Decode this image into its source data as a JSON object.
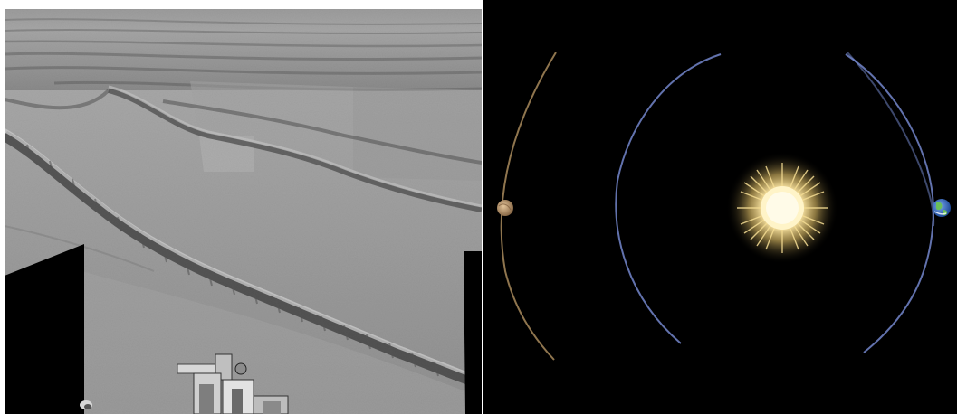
{
  "image": {
    "left_panel": {
      "description_name": "mars-sand-ripples-mosaic",
      "features": [
        "sand-ripples",
        "rover-arm-hardware",
        "mosaic-black-gap"
      ],
      "palette": {
        "sand_light": "#b5b5b5",
        "sand_mid": "#8e8e8e",
        "sand_dark": "#5f5f5f",
        "shadow": "#3c3c3c",
        "gap": "#000000"
      }
    },
    "right_panel": {
      "description_name": "mars-solar-conjunction-diagram",
      "bodies": [
        "sun",
        "mars",
        "earth"
      ],
      "palette": {
        "space": "#000000",
        "sun_core": "#fff7d6",
        "sun_glow": "#f2d27a",
        "mars": "#c9a47a",
        "earth_blue": "#4a7bd1",
        "earth_green": "#6bbf59",
        "orbit_mars": "#a88a5c",
        "orbit_earth": "#7a8fd8"
      }
    }
  }
}
